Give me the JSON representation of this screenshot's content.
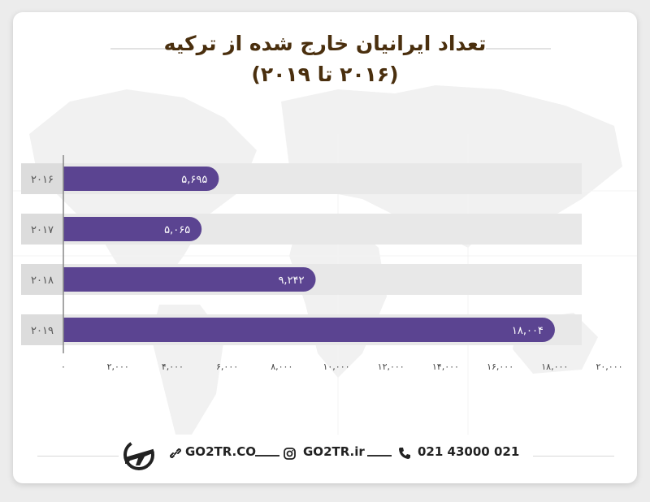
{
  "title": {
    "line1": "تعداد ایرانیان خارج شده از ترکیه",
    "line2": "(۲۰۱۶ تا ۲۰۱۹)"
  },
  "chart_data": {
    "type": "bar",
    "orientation": "horizontal",
    "categories": [
      "۲۰۱۶",
      "۲۰۱۷",
      "۲۰۱۸",
      "۲۰۱۹"
    ],
    "values": [
      5695,
      5065,
      9242,
      18004
    ],
    "value_labels": [
      "۵,۶۹۵",
      "۵,۰۶۵",
      "۹,۲۴۲",
      "۱۸,۰۰۴"
    ],
    "xlim": [
      0,
      20000
    ],
    "x_ticks": [
      0,
      2000,
      4000,
      6000,
      8000,
      10000,
      12000,
      14000,
      16000,
      18000,
      20000
    ],
    "x_tick_labels": [
      "۰",
      "۲,۰۰۰",
      "۴,۰۰۰",
      "۶,۰۰۰",
      "۸,۰۰۰",
      "۱۰,۰۰۰",
      "۱۲,۰۰۰",
      "۱۴,۰۰۰",
      "۱۶,۰۰۰",
      "۱۸,۰۰۰",
      "۲۰,۰۰۰"
    ],
    "bar_color": "#5b4491",
    "track_color": "#e8e8e8",
    "category_cell_color": "#dcdcdc",
    "legend": "none",
    "grid": false
  },
  "footer": {
    "website": "GO2TR.CO",
    "instagram": "GO2TR.ir",
    "phone": "021 43000 021",
    "website_icon": "link-icon",
    "instagram_icon": "instagram-icon",
    "phone_icon": "phone-icon",
    "logo_icon": "airplane-logo-icon"
  },
  "colors": {
    "title": "#4a2f0e",
    "bar": "#5b4491"
  }
}
